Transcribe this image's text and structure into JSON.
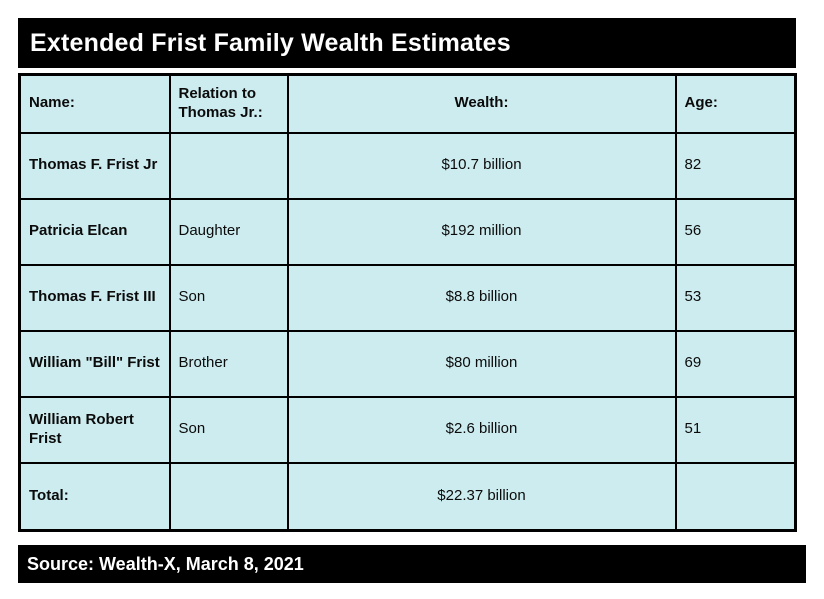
{
  "chart_data": {
    "type": "table",
    "title": "Extended Frist Family Wealth Estimates",
    "columns": [
      "Name:",
      "Relation to Thomas Jr.:",
      "Wealth:",
      "Age:"
    ],
    "rows": [
      [
        "Thomas F. Frist Jr",
        "",
        "$10.7 billion",
        "82"
      ],
      [
        "Patricia Elcan",
        "Daughter",
        "$192 million",
        "56"
      ],
      [
        "Thomas F. Frist III",
        "Son",
        "$8.8 billion",
        "53"
      ],
      [
        "William \"Bill\" Frist",
        "Brother",
        "$80 million",
        "69"
      ],
      [
        "William Robert Frist",
        "Son",
        "$2.6 billion",
        "51"
      ]
    ],
    "total_row": [
      "Total:",
      "",
      "$22.37 billion",
      ""
    ],
    "wealth_values_usd_billions": [
      10.7,
      0.192,
      8.8,
      0.08,
      2.6
    ],
    "total_wealth_usd_billions": 22.37,
    "ages": [
      82,
      56,
      53,
      69,
      51
    ],
    "source": "Source: Wealth-X, March 8, 2021"
  },
  "colors": {
    "cell_background": "#cdecef",
    "bar_background": "#000000",
    "bar_text": "#ffffff",
    "border": "#000000",
    "page_background": "#ffffff"
  }
}
